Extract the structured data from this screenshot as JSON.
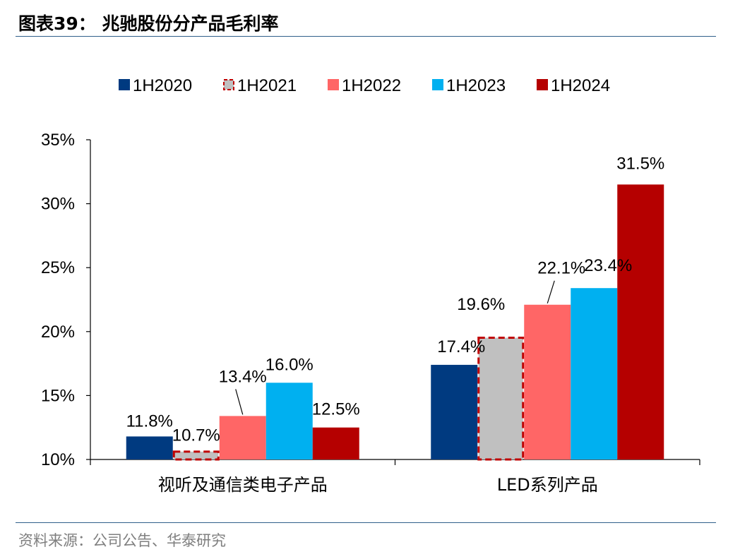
{
  "header": {
    "title": "图表39：  兆驰股份分产品毛利率"
  },
  "footer": {
    "source": "资料来源：公司公告、华泰研究"
  },
  "chart_data": {
    "type": "bar",
    "categories": [
      "视听及通信类电子产品",
      "LED系列产品"
    ],
    "series": [
      {
        "name": "1H2020",
        "values": [
          11.8,
          17.4
        ],
        "labels": [
          "11.8%",
          "17.4%"
        ],
        "color": "#003a80"
      },
      {
        "name": "1H2021",
        "values": [
          10.7,
          19.6
        ],
        "labels": [
          "10.7%",
          "19.6%"
        ],
        "color": "#c0c0c0",
        "border": "#c00000",
        "dashed": true
      },
      {
        "name": "1H2022",
        "values": [
          13.4,
          22.1
        ],
        "labels": [
          "13.4%",
          "22.1%"
        ],
        "color": "#ff6666"
      },
      {
        "name": "1H2023",
        "values": [
          16.0,
          23.4
        ],
        "labels": [
          "16.0%",
          "23.4%"
        ],
        "color": "#00b0f0"
      },
      {
        "name": "1H2024",
        "values": [
          12.5,
          31.5
        ],
        "labels": [
          "12.5%",
          "31.5%"
        ],
        "color": "#b50000"
      }
    ],
    "ylim": [
      10,
      35
    ],
    "yticks": [
      "10%",
      "15%",
      "20%",
      "25%",
      "30%",
      "35%"
    ],
    "ytick_values": [
      10,
      15,
      20,
      25,
      30,
      35
    ],
    "legend": "top",
    "grid": false
  }
}
